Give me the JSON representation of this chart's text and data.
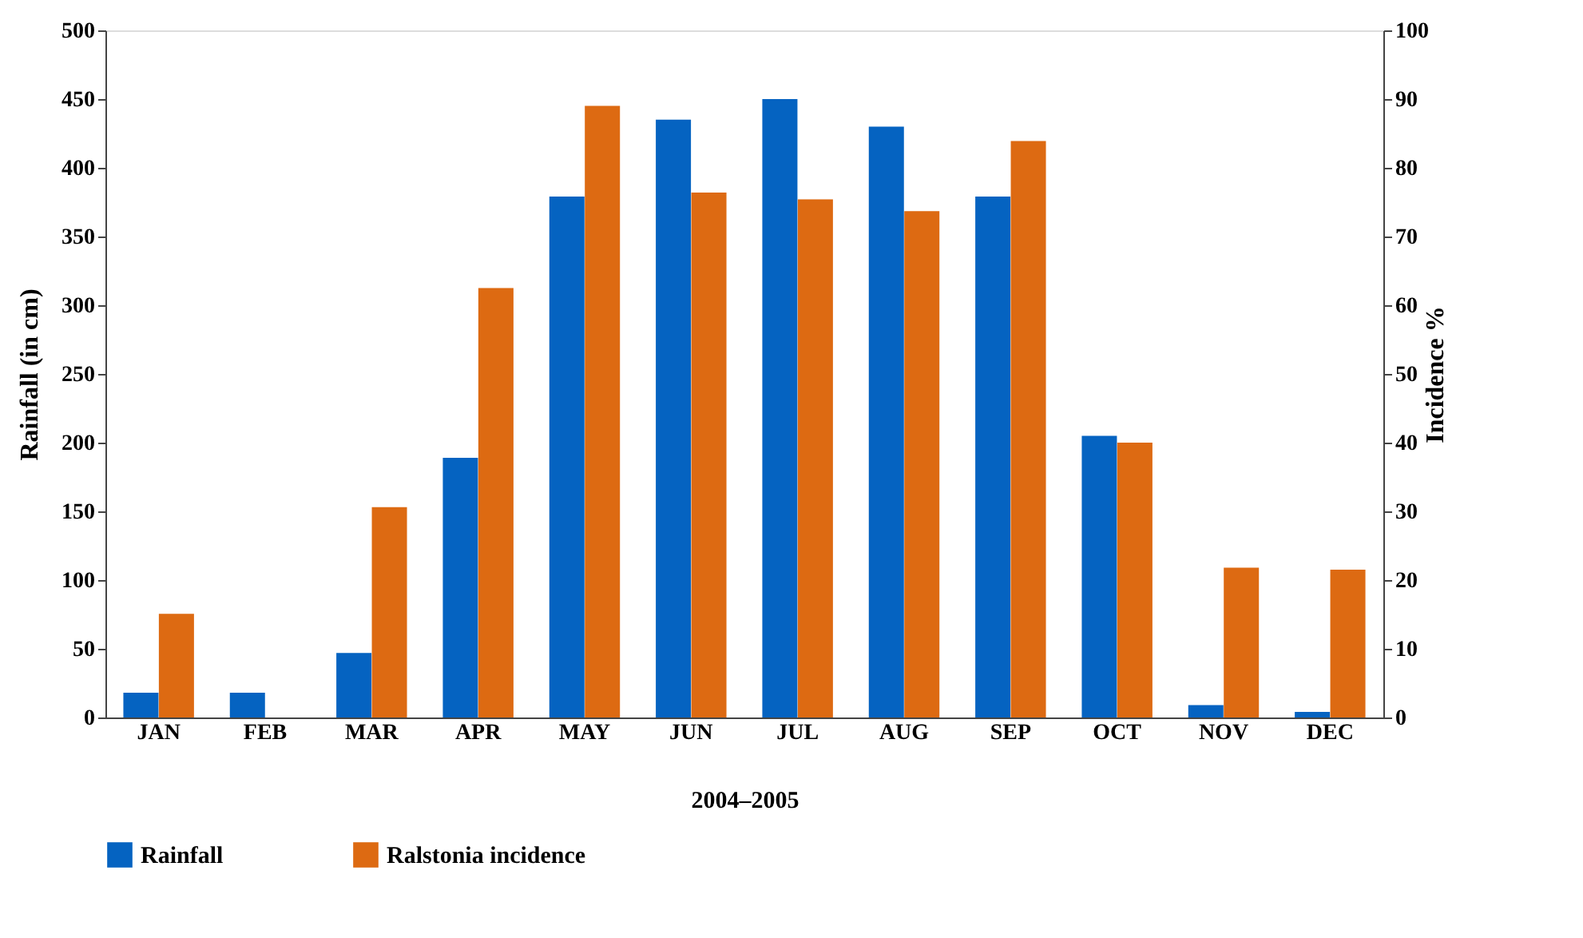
{
  "chart_data": {
    "type": "bar",
    "xlabel": "2004–2005",
    "ylabel": "Rainfall (in cm)",
    "y2label": "Incidence %",
    "categories": [
      "JAN",
      "FEB",
      "MAR",
      "APR",
      "MAY",
      "JUN",
      "JUL",
      "AUG",
      "SEP",
      "OCT",
      "NOV",
      "DEC"
    ],
    "series": [
      {
        "name": "Rainfall",
        "color": "#0563c1",
        "values": [
          18,
          18,
          47,
          189,
          379,
          435,
          450,
          430,
          379,
          205,
          9,
          4
        ]
      },
      {
        "name": "Ralstonia incidence",
        "color": "#dd6a12",
        "axis": "y2",
        "values": [
          15.1,
          null,
          30.6,
          62.5,
          89,
          76.4,
          75.4,
          73.7,
          83.9,
          40,
          21.8,
          21.5
        ]
      }
    ],
    "ylim": [
      0,
      500
    ],
    "yticks": [
      0,
      50,
      100,
      150,
      200,
      250,
      300,
      350,
      400,
      450,
      500
    ],
    "y2lim": [
      0,
      100
    ],
    "y2ticks": [
      0,
      10,
      20,
      30,
      40,
      50,
      60,
      70,
      80,
      90,
      100
    ],
    "grid": false,
    "legend": "bottom"
  }
}
